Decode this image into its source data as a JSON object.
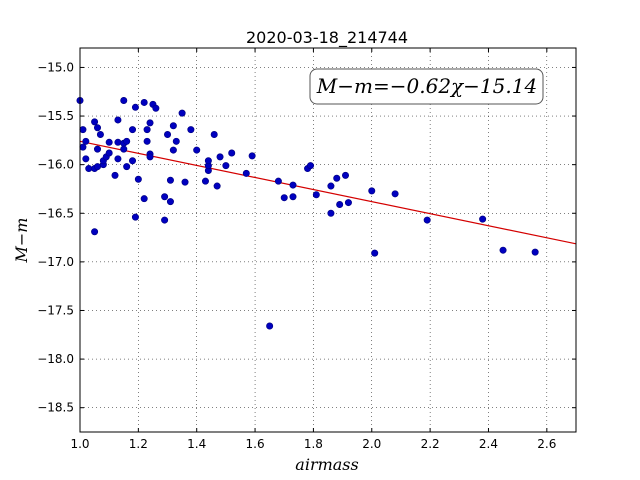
{
  "chart_data": {
    "type": "scatter",
    "title": "2020-03-18_214744",
    "xlabel": "airmass",
    "ylabel": "M−m",
    "annotation": "M−m=−0.62χ−15.14",
    "xlim": [
      1.0,
      2.7
    ],
    "ylim": [
      -18.75,
      -14.8
    ],
    "y_inverted": false,
    "grid": true,
    "xticks": [
      1.0,
      1.2,
      1.4,
      1.6,
      1.8,
      2.0,
      2.2,
      2.4,
      2.6
    ],
    "xtick_labels": [
      "1.0",
      "1.2",
      "1.4",
      "1.6",
      "1.8",
      "2.0",
      "2.2",
      "2.4",
      "2.6"
    ],
    "yticks": [
      -15.0,
      -15.5,
      -16.0,
      -16.5,
      -17.0,
      -17.5,
      -18.0,
      -18.5
    ],
    "ytick_labels": [
      "−15.0",
      "−15.5",
      "−16.0",
      "−16.5",
      "−17.0",
      "−17.5",
      "−18.0",
      "−18.5"
    ],
    "fit": {
      "slope": -0.62,
      "intercept": -15.14,
      "color": "#d40000"
    },
    "point_color": "#0000bf",
    "point_edge": "#00007f",
    "points": [
      [
        1.0,
        -15.34
      ],
      [
        1.01,
        -15.64
      ],
      [
        1.01,
        -15.82
      ],
      [
        1.02,
        -15.76
      ],
      [
        1.02,
        -15.94
      ],
      [
        1.03,
        -16.04
      ],
      [
        1.05,
        -15.56
      ],
      [
        1.05,
        -16.04
      ],
      [
        1.05,
        -16.69
      ],
      [
        1.06,
        -16.02
      ],
      [
        1.06,
        -15.84
      ],
      [
        1.06,
        -15.62
      ],
      [
        1.07,
        -15.69
      ],
      [
        1.08,
        -16.0
      ],
      [
        1.08,
        -15.96
      ],
      [
        1.09,
        -15.92
      ],
      [
        1.1,
        -15.77
      ],
      [
        1.1,
        -15.88
      ],
      [
        1.12,
        -16.11
      ],
      [
        1.13,
        -15.54
      ],
      [
        1.13,
        -15.77
      ],
      [
        1.13,
        -15.94
      ],
      [
        1.15,
        -15.34
      ],
      [
        1.15,
        -15.78
      ],
      [
        1.15,
        -15.84
      ],
      [
        1.16,
        -15.76
      ],
      [
        1.16,
        -16.02
      ],
      [
        1.18,
        -15.64
      ],
      [
        1.18,
        -15.96
      ],
      [
        1.19,
        -15.41
      ],
      [
        1.19,
        -16.54
      ],
      [
        1.2,
        -16.15
      ],
      [
        1.22,
        -15.36
      ],
      [
        1.22,
        -16.35
      ],
      [
        1.23,
        -15.76
      ],
      [
        1.23,
        -15.64
      ],
      [
        1.24,
        -15.89
      ],
      [
        1.24,
        -15.57
      ],
      [
        1.24,
        -15.92
      ],
      [
        1.25,
        -15.38
      ],
      [
        1.26,
        -15.42
      ],
      [
        1.29,
        -16.57
      ],
      [
        1.29,
        -16.33
      ],
      [
        1.3,
        -15.69
      ],
      [
        1.31,
        -16.38
      ],
      [
        1.31,
        -16.16
      ],
      [
        1.32,
        -15.6
      ],
      [
        1.32,
        -15.85
      ],
      [
        1.33,
        -15.76
      ],
      [
        1.35,
        -15.47
      ],
      [
        1.36,
        -16.18
      ],
      [
        1.38,
        -15.64
      ],
      [
        1.4,
        -15.85
      ],
      [
        1.43,
        -16.17
      ],
      [
        1.44,
        -16.06
      ],
      [
        1.44,
        -16.01
      ],
      [
        1.44,
        -15.96
      ],
      [
        1.46,
        -15.69
      ],
      [
        1.47,
        -16.22
      ],
      [
        1.48,
        -15.92
      ],
      [
        1.5,
        -16.01
      ],
      [
        1.52,
        -15.88
      ],
      [
        1.57,
        -16.09
      ],
      [
        1.59,
        -15.91
      ],
      [
        1.65,
        -17.66
      ],
      [
        1.68,
        -16.17
      ],
      [
        1.7,
        -16.34
      ],
      [
        1.73,
        -16.33
      ],
      [
        1.73,
        -16.21
      ],
      [
        1.78,
        -16.04
      ],
      [
        1.79,
        -16.01
      ],
      [
        1.81,
        -16.31
      ],
      [
        1.86,
        -16.5
      ],
      [
        1.86,
        -16.22
      ],
      [
        1.88,
        -16.14
      ],
      [
        1.89,
        -16.41
      ],
      [
        1.91,
        -16.11
      ],
      [
        1.92,
        -16.39
      ],
      [
        2.0,
        -16.27
      ],
      [
        2.01,
        -16.91
      ],
      [
        2.08,
        -16.3
      ],
      [
        2.19,
        -16.57
      ],
      [
        2.38,
        -16.56
      ],
      [
        2.45,
        -16.88
      ],
      [
        2.56,
        -16.9
      ]
    ]
  }
}
